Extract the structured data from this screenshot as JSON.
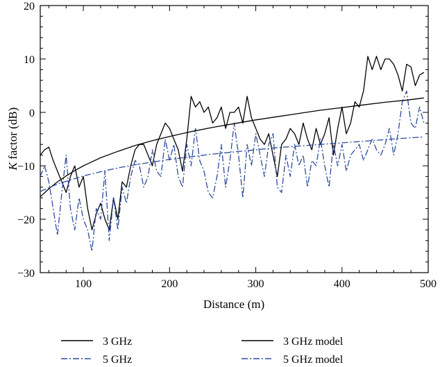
{
  "chart_data": {
    "type": "line",
    "xlabel": "Distance (m)",
    "ylabel_italic": "K",
    "ylabel_rest": " factor (dB)",
    "xlim": [
      50,
      500
    ],
    "ylim": [
      -30,
      20
    ],
    "x_ticks": [
      100,
      200,
      300,
      400,
      500
    ],
    "y_ticks": [
      -30,
      -20,
      -10,
      0,
      10,
      20
    ],
    "grid": false,
    "legend_position": "bottom",
    "series": [
      {
        "name": "3 GHz",
        "color": "#000000",
        "style": "solid",
        "x": [
          50,
          55,
          60,
          65,
          70,
          75,
          80,
          85,
          90,
          95,
          100,
          105,
          110,
          115,
          120,
          125,
          130,
          135,
          140,
          145,
          150,
          155,
          160,
          165,
          170,
          175,
          180,
          185,
          190,
          195,
          200,
          205,
          210,
          215,
          220,
          225,
          230,
          235,
          240,
          245,
          250,
          255,
          260,
          265,
          270,
          275,
          280,
          285,
          290,
          295,
          300,
          305,
          310,
          315,
          320,
          325,
          330,
          335,
          340,
          345,
          350,
          355,
          360,
          365,
          370,
          375,
          380,
          385,
          390,
          395,
          400,
          405,
          410,
          415,
          420,
          425,
          430,
          435,
          440,
          445,
          450,
          455,
          460,
          465,
          470,
          475,
          480,
          485,
          490,
          495
        ],
        "y": [
          -8,
          -7,
          -6.5,
          -9,
          -11,
          -13,
          -15,
          -12,
          -10,
          -14,
          -12,
          -18,
          -22,
          -19,
          -17,
          -20,
          -22,
          -16,
          -20,
          -13,
          -14,
          -10,
          -7,
          -6,
          -6,
          -8,
          -10,
          -6,
          -4,
          -2,
          -3,
          -5,
          -7,
          -11,
          -5,
          3,
          1,
          2,
          0,
          1,
          -2,
          -1,
          1,
          -3,
          0,
          0,
          1,
          -2,
          3,
          -1,
          -3,
          -5,
          -6,
          -4,
          -8,
          -12,
          -6,
          -5,
          -3,
          -4,
          -6,
          -2,
          -5,
          -7,
          -3,
          -6,
          -4,
          -1,
          -8,
          -3,
          1,
          -4,
          -2,
          2,
          1,
          4,
          10.5,
          8,
          10.5,
          8,
          10,
          10,
          9,
          7,
          4,
          9,
          8.5,
          5,
          7,
          7.5
        ]
      },
      {
        "name": "5 GHz",
        "color": "#2b4a9b",
        "style": "dashdot",
        "x": [
          50,
          55,
          60,
          65,
          70,
          75,
          80,
          85,
          90,
          95,
          100,
          105,
          110,
          115,
          120,
          125,
          130,
          135,
          140,
          145,
          150,
          155,
          160,
          165,
          170,
          175,
          180,
          185,
          190,
          195,
          200,
          205,
          210,
          215,
          220,
          225,
          230,
          235,
          240,
          245,
          250,
          255,
          260,
          265,
          270,
          275,
          280,
          285,
          290,
          295,
          300,
          305,
          310,
          315,
          320,
          325,
          330,
          335,
          340,
          345,
          350,
          355,
          360,
          365,
          370,
          375,
          380,
          385,
          390,
          395,
          400,
          405,
          410,
          415,
          420,
          425,
          430,
          435,
          440,
          445,
          450,
          455,
          460,
          465,
          470,
          475,
          480,
          485,
          490,
          495
        ],
        "y": [
          -12,
          -10,
          -13,
          -18,
          -23,
          -15,
          -8,
          -18,
          -22,
          -16,
          -20,
          -22,
          -26,
          -18,
          -20,
          -11,
          -24,
          -16,
          -22,
          -14,
          -17,
          -12,
          -9,
          -10,
          -14,
          -12,
          -7,
          -11,
          -12,
          -5,
          -9,
          -6,
          -12,
          -14,
          -6,
          -10,
          -3,
          -9,
          -11,
          -15,
          -16,
          -12,
          -6,
          -14,
          -9,
          -2,
          -8,
          -16,
          -6,
          -10,
          -4,
          -8,
          -12,
          -6,
          -4,
          -14,
          -15,
          -8,
          -12,
          -6,
          -10,
          -8,
          -14,
          -9,
          -10,
          -5,
          -10,
          -14,
          -6,
          -10,
          -6,
          -11,
          -8,
          -7,
          -6,
          -9,
          -7,
          -5,
          -7,
          -8,
          -6,
          -3,
          -8,
          -4,
          2,
          4,
          -2,
          -3,
          1,
          -2
        ]
      },
      {
        "name": "3 GHz model",
        "color": "#000000",
        "style": "solid",
        "x": [
          50,
          60,
          70,
          80,
          90,
          100,
          120,
          140,
          160,
          180,
          200,
          225,
          250,
          275,
          300,
          325,
          350,
          375,
          400,
          425,
          450,
          475,
          495
        ],
        "y": [
          -15.8,
          -14.3,
          -13,
          -11.9,
          -10.9,
          -10,
          -8.5,
          -7.3,
          -6.2,
          -5.3,
          -4.5,
          -3.6,
          -2.8,
          -2.1,
          -1.4,
          -0.8,
          -0.2,
          0.4,
          0.9,
          1.4,
          1.9,
          2.3,
          2.7
        ]
      },
      {
        "name": "5 GHz model",
        "color": "#2b4a9b",
        "style": "dashdot",
        "x": [
          50,
          60,
          70,
          80,
          90,
          100,
          120,
          140,
          160,
          180,
          200,
          225,
          250,
          275,
          300,
          325,
          350,
          375,
          400,
          425,
          450,
          475,
          495
        ],
        "y": [
          -14.8,
          -14.1,
          -13.4,
          -12.9,
          -12.4,
          -11.9,
          -11.1,
          -10.4,
          -9.8,
          -9.3,
          -8.8,
          -8.3,
          -7.8,
          -7.4,
          -7,
          -6.6,
          -6.3,
          -6,
          -5.7,
          -5.4,
          -5.1,
          -4.8,
          -4.6
        ]
      }
    ]
  }
}
